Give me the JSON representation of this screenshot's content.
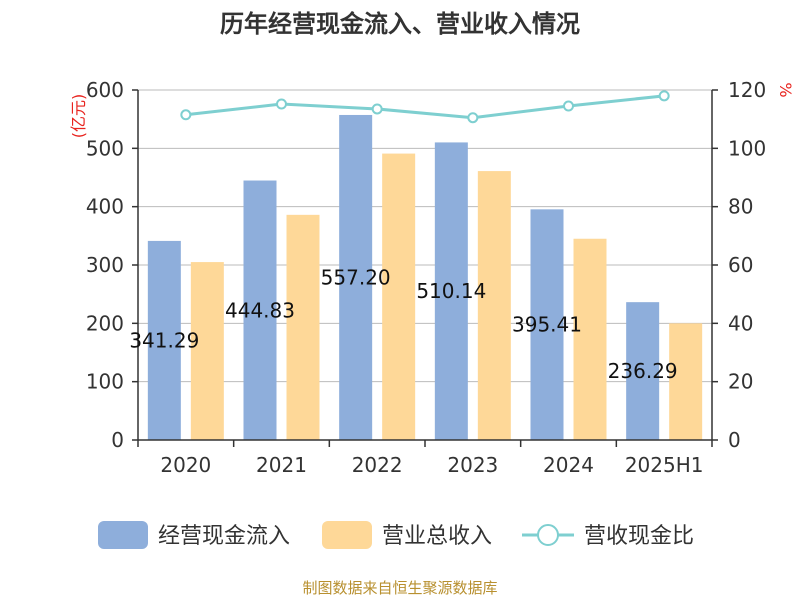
{
  "title": "历年经营现金流入、营业收入情况",
  "source": "制图数据来自恒生聚源数据库",
  "colors": {
    "inflow": "#8eaedb",
    "revenue": "#fed898",
    "ratio": "#7ecfd0",
    "axis": "#333333",
    "grid": "#bbbbbb",
    "unit": "#e8231e",
    "source": "#b8902f"
  },
  "chart_data": {
    "type": "bar",
    "title": "历年经营现金流入、营业收入情况",
    "categories": [
      "2020",
      "2021",
      "2022",
      "2023",
      "2024",
      "2025H1"
    ],
    "left_axis": {
      "unit": "(亿元)",
      "ylim": [
        0,
        600
      ],
      "ticks": [
        "0",
        "100",
        "200",
        "300",
        "400",
        "500",
        "600"
      ]
    },
    "right_axis": {
      "unit": "%",
      "ylim": [
        0,
        120
      ],
      "ticks": [
        "0",
        "20",
        "40",
        "60",
        "80",
        "100",
        "120"
      ]
    },
    "grid": true,
    "legend_position": "bottom",
    "series": [
      {
        "name": "经营现金流入",
        "type": "bar",
        "axis": "left",
        "values": [
          341.29,
          444.83,
          557.2,
          510.14,
          395.41,
          236.29
        ],
        "labels": [
          "341.29",
          "444.83",
          "557.20",
          "510.14",
          "395.41",
          "236.29"
        ]
      },
      {
        "name": "营业总收入",
        "type": "bar",
        "axis": "left",
        "values": [
          305,
          386,
          491,
          461,
          345,
          200
        ]
      },
      {
        "name": "营收现金比",
        "type": "line",
        "axis": "right",
        "values": [
          111.5,
          115.2,
          113.5,
          110.5,
          114.5,
          118
        ]
      }
    ]
  }
}
